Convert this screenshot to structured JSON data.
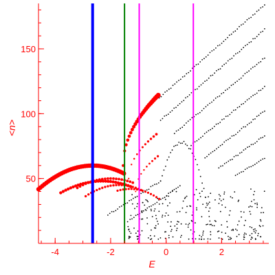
{
  "chart_data": {
    "type": "scatter",
    "title": "",
    "xlabel": "E",
    "ylabel": "<n>",
    "xlim": [
      -4.6,
      3.7
    ],
    "ylim": [
      0,
      185
    ],
    "xticks": [
      -4,
      -2,
      0,
      2
    ],
    "yticks": [
      50,
      100,
      150
    ],
    "grid": false,
    "colors": {
      "axes": "#ff0000",
      "red_points": "#ff0000",
      "black_points": "#000000",
      "blue_line": "#0000ff",
      "green_line": "#008000",
      "magenta_line": "#ff00ff"
    },
    "vertical_lines": [
      {
        "x": -2.65,
        "color": "#0000ff",
        "width": "thick"
      },
      {
        "x": -1.5,
        "color": "#008000",
        "width": "normal"
      },
      {
        "x": -0.97,
        "color": "#ff00ff",
        "width": "normal"
      },
      {
        "x": 0.98,
        "color": "#ff00ff",
        "width": "normal"
      }
    ],
    "red_arcs": [
      {
        "x0": -4.6,
        "x1": -1.5,
        "cx": -2.65,
        "peak": 60,
        "curv": 4.8,
        "size": 3.2,
        "step": 0.07
      },
      {
        "x0": -3.8,
        "x1": -1.2,
        "cx": -2.3,
        "peak": 48,
        "curv": 4.0,
        "size": 2.2,
        "step": 0.09
      },
      {
        "x0": -3.2,
        "x1": -1.1,
        "cx": -2.0,
        "peak": 50,
        "curv": 5.0,
        "size": 1.9,
        "step": 0.1
      },
      {
        "x0": -2.9,
        "x1": -0.8,
        "cx": -1.7,
        "peak": 45,
        "curv": 6.0,
        "size": 1.7,
        "step": 0.1
      },
      {
        "x0": -1.75,
        "x1": -0.2,
        "cx": -1.3,
        "peak": 42,
        "curv": 7.0,
        "size": 1.6,
        "step": 0.1
      }
    ],
    "red_rising": [
      {
        "x0": -1.55,
        "x1": -0.25,
        "y0": 60,
        "y1": 115,
        "size": 3.0,
        "step": 0.055
      },
      {
        "x0": -1.35,
        "x1": -0.3,
        "y0": 50,
        "y1": 85,
        "size": 1.6,
        "step": 0.1
      },
      {
        "x0": -1.1,
        "x1": -0.25,
        "y0": 40,
        "y1": 68,
        "size": 1.4,
        "step": 0.1
      }
    ],
    "black_diagonals": [
      {
        "x0": -0.25,
        "x1": 3.55,
        "y0": 112,
        "y1": 184
      },
      {
        "x0": -0.2,
        "x1": 3.55,
        "y0": 95,
        "y1": 165
      },
      {
        "x0": 0.3,
        "x1": 3.55,
        "y0": 85,
        "y1": 143
      },
      {
        "x0": 0.9,
        "x1": 3.55,
        "y0": 76,
        "y1": 121
      },
      {
        "x0": 1.4,
        "x1": 3.55,
        "y0": 66,
        "y1": 102
      },
      {
        "x0": 1.9,
        "x1": 3.55,
        "y0": 58,
        "y1": 83
      },
      {
        "x0": 2.5,
        "x1": 3.55,
        "y0": 52,
        "y1": 66
      },
      {
        "x0": -2.1,
        "x1": -0.2,
        "y0": 22,
        "y1": 48
      },
      {
        "x0": -1.3,
        "x1": 0.5,
        "y0": 18,
        "y1": 44
      }
    ],
    "black_cloud": {
      "x0": -1.4,
      "x1": 3.6,
      "y0": 3,
      "y1": 42,
      "count": 260
    },
    "black_arc": {
      "x0": -0.2,
      "x1": 1.6,
      "cx": 0.55,
      "peak": 78,
      "curv": 55
    }
  }
}
